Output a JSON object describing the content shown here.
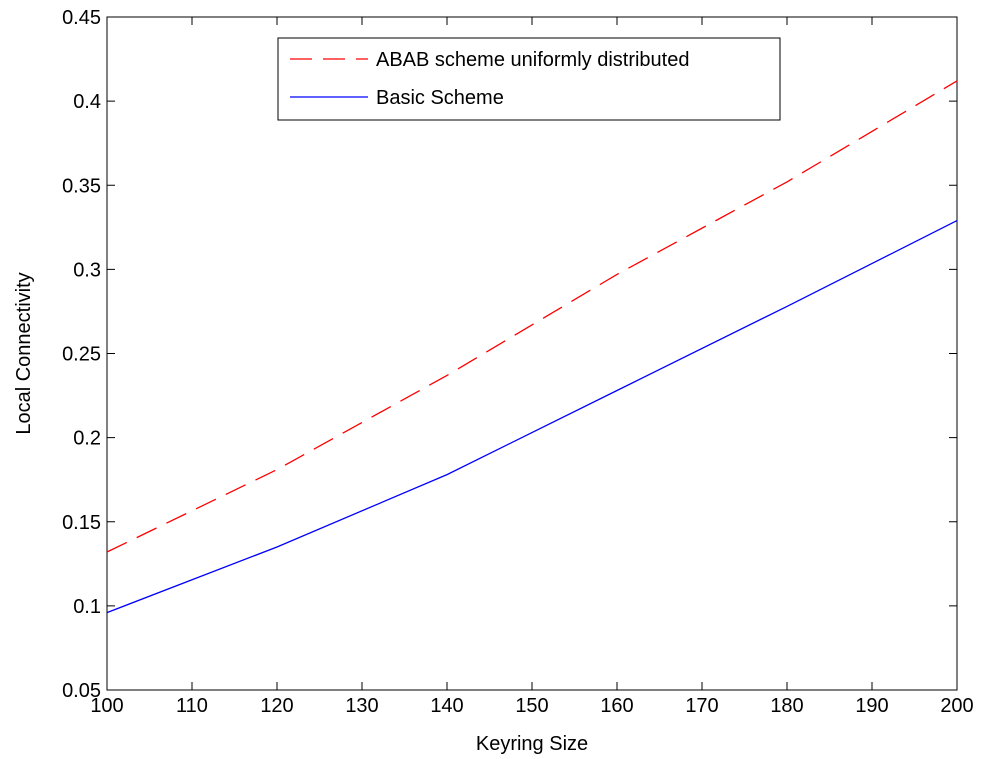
{
  "chart_data": {
    "type": "line",
    "title": "",
    "xlabel": "Keyring Size",
    "ylabel": "Local Connectivity",
    "xlim": [
      100,
      200
    ],
    "ylim": [
      0.05,
      0.45
    ],
    "xticks": [
      100,
      110,
      120,
      130,
      140,
      150,
      160,
      170,
      180,
      190,
      200
    ],
    "yticks": [
      0.05,
      0.1,
      0.15,
      0.2,
      0.25,
      0.3,
      0.35,
      0.4,
      0.45
    ],
    "xtick_labels": [
      "100",
      "110",
      "120",
      "130",
      "140",
      "150",
      "160",
      "170",
      "180",
      "190",
      "200"
    ],
    "ytick_labels": [
      "0.05",
      "0.1",
      "0.15",
      "0.2",
      "0.25",
      "0.3",
      "0.35",
      "0.4",
      "0.45"
    ],
    "grid": false,
    "legend_position": "top-center",
    "x": [
      100,
      120,
      140,
      160,
      180,
      200
    ],
    "series": [
      {
        "name": "ABAB scheme uniformly distributed",
        "color": "#ff0000",
        "style": "dashed",
        "values": [
          0.132,
          0.181,
          0.237,
          0.297,
          0.352,
          0.412
        ]
      },
      {
        "name": "Basic Scheme",
        "color": "#0000ff",
        "style": "solid",
        "values": [
          0.096,
          0.135,
          0.178,
          0.228,
          0.278,
          0.329
        ]
      }
    ]
  }
}
